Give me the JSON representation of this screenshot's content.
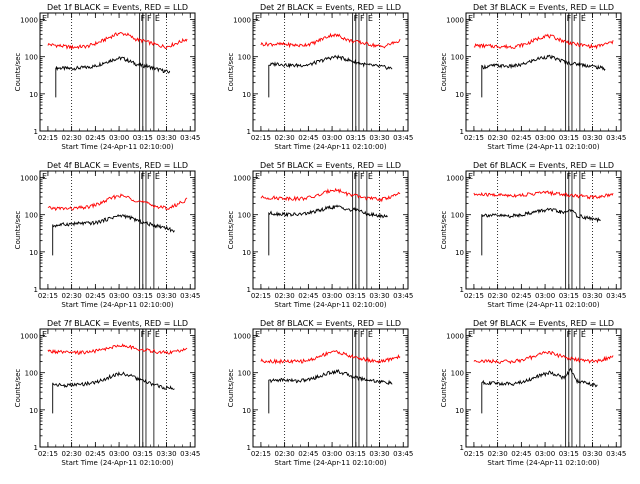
{
  "xticks": [
    "02:15",
    "02:30",
    "02:45",
    "03:00",
    "03:15",
    "03:30",
    "03:45"
  ],
  "yticks": [
    "1",
    "10",
    "100",
    "1000"
  ],
  "xlabel": "Start Time (24-Apr-11 02:10:00)",
  "ylabel": "Counts/sec",
  "colors": {
    "events": "#000000",
    "lld": "#ff0000",
    "dotted": "#000000",
    "frame": "#000000"
  },
  "chart_data": [
    {
      "type": "line",
      "title": "Det 1f BLACK = Events, RED = LLD",
      "markers": [
        "F",
        "F",
        "E"
      ],
      "series": [
        {
          "name": "Events",
          "color": "#000000",
          "points": [
            [
              "02:20",
              50
            ],
            [
              "02:30",
              48
            ],
            [
              "02:40",
              52
            ],
            [
              "02:45",
              56
            ],
            [
              "02:50",
              68
            ],
            [
              "02:55",
              80
            ],
            [
              "02:58",
              88
            ],
            [
              "03:02",
              92
            ],
            [
              "03:07",
              75
            ],
            [
              "03:12",
              60
            ],
            [
              "03:18",
              55
            ],
            [
              "03:25",
              45
            ],
            [
              "03:32",
              38
            ]
          ]
        },
        {
          "name": "LLD",
          "color": "#ff0000",
          "points": [
            [
              "02:15",
              215
            ],
            [
              "02:30",
              180
            ],
            [
              "02:40",
              190
            ],
            [
              "02:48",
              250
            ],
            [
              "02:55",
              350
            ],
            [
              "03:00",
              430
            ],
            [
              "03:05",
              400
            ],
            [
              "03:10",
              300
            ],
            [
              "03:18",
              250
            ],
            [
              "03:25",
              200
            ],
            [
              "03:30",
              185
            ],
            [
              "03:35",
              220
            ],
            [
              "03:43",
              300
            ]
          ]
        }
      ]
    },
    {
      "type": "line",
      "title": "Det 2f BLACK = Events, RED = LLD",
      "markers": [
        "F",
        "F",
        "E"
      ],
      "series": [
        {
          "name": "Events",
          "color": "#000000",
          "points": [
            [
              "02:20",
              60
            ],
            [
              "02:25",
              65
            ],
            [
              "02:35",
              58
            ],
            [
              "02:45",
              60
            ],
            [
              "02:52",
              75
            ],
            [
              "02:58",
              92
            ],
            [
              "03:03",
              100
            ],
            [
              "03:08",
              88
            ],
            [
              "03:15",
              70
            ],
            [
              "03:22",
              60
            ],
            [
              "03:30",
              55
            ],
            [
              "03:38",
              48
            ]
          ]
        },
        {
          "name": "LLD",
          "color": "#ff0000",
          "points": [
            [
              "02:15",
              220
            ],
            [
              "02:30",
              215
            ],
            [
              "02:40",
              200
            ],
            [
              "02:48",
              230
            ],
            [
              "02:55",
              320
            ],
            [
              "03:00",
              390
            ],
            [
              "03:05",
              360
            ],
            [
              "03:10",
              280
            ],
            [
              "03:18",
              240
            ],
            [
              "03:25",
              210
            ],
            [
              "03:32",
              185
            ],
            [
              "03:43",
              270
            ]
          ]
        }
      ]
    },
    {
      "type": "line",
      "title": "Det 3f BLACK = Events, RED = LLD",
      "markers": [
        "F",
        "F",
        "E"
      ],
      "series": [
        {
          "name": "Events",
          "color": "#000000",
          "points": [
            [
              "02:20",
              52
            ],
            [
              "02:28",
              58
            ],
            [
              "02:38",
              55
            ],
            [
              "02:45",
              60
            ],
            [
              "02:52",
              78
            ],
            [
              "02:58",
              95
            ],
            [
              "03:03",
              100
            ],
            [
              "03:08",
              85
            ],
            [
              "03:15",
              68
            ],
            [
              "03:22",
              62
            ],
            [
              "03:30",
              55
            ],
            [
              "03:38",
              48
            ]
          ]
        },
        {
          "name": "LLD",
          "color": "#ff0000",
          "points": [
            [
              "02:15",
              200
            ],
            [
              "02:30",
              190
            ],
            [
              "02:40",
              185
            ],
            [
              "02:48",
              220
            ],
            [
              "02:55",
              300
            ],
            [
              "03:00",
              370
            ],
            [
              "03:05",
              340
            ],
            [
              "03:10",
              280
            ],
            [
              "03:18",
              220
            ],
            [
              "03:25",
              200
            ],
            [
              "03:32",
              185
            ],
            [
              "03:43",
              250
            ]
          ]
        }
      ]
    },
    {
      "type": "line",
      "title": "Det 4f BLACK = Events, RED = LLD",
      "markers": [
        "F",
        "F",
        "E"
      ],
      "series": [
        {
          "name": "Events",
          "color": "#000000",
          "points": [
            [
              "02:18",
              50
            ],
            [
              "02:25",
              55
            ],
            [
              "02:35",
              58
            ],
            [
              "02:45",
              60
            ],
            [
              "02:52",
              75
            ],
            [
              "02:58",
              90
            ],
            [
              "03:03",
              95
            ],
            [
              "03:08",
              80
            ],
            [
              "03:15",
              62
            ],
            [
              "03:22",
              52
            ],
            [
              "03:30",
              45
            ],
            [
              "03:35",
              35
            ]
          ]
        },
        {
          "name": "LLD",
          "color": "#ff0000",
          "points": [
            [
              "02:15",
              150
            ],
            [
              "02:30",
              145
            ],
            [
              "02:40",
              160
            ],
            [
              "02:48",
              200
            ],
            [
              "02:55",
              280
            ],
            [
              "03:00",
              330
            ],
            [
              "03:05",
              300
            ],
            [
              "03:10",
              250
            ],
            [
              "03:18",
              200
            ],
            [
              "03:25",
              160
            ],
            [
              "03:32",
              150
            ],
            [
              "03:43",
              260
            ]
          ]
        }
      ]
    },
    {
      "type": "line",
      "title": "Det 5f BLACK = Events, RED = LLD",
      "markers": [
        "F",
        "F",
        "E"
      ],
      "series": [
        {
          "name": "Events",
          "color": "#000000",
          "points": [
            [
              "02:20",
              110
            ],
            [
              "02:28",
              105
            ],
            [
              "02:38",
              100
            ],
            [
              "02:45",
              110
            ],
            [
              "02:52",
              130
            ],
            [
              "02:58",
              155
            ],
            [
              "03:03",
              165
            ],
            [
              "03:08",
              150
            ],
            [
              "03:12",
              130
            ],
            [
              "03:16",
              140
            ],
            [
              "03:20",
              110
            ],
            [
              "03:28",
              95
            ],
            [
              "03:35",
              90
            ]
          ]
        },
        {
          "name": "LLD",
          "color": "#ff0000",
          "points": [
            [
              "02:15",
              290
            ],
            [
              "02:30",
              280
            ],
            [
              "02:40",
              270
            ],
            [
              "02:48",
              300
            ],
            [
              "02:55",
              380
            ],
            [
              "03:00",
              480
            ],
            [
              "03:05",
              440
            ],
            [
              "03:10",
              360
            ],
            [
              "03:18",
              300
            ],
            [
              "03:25",
              270
            ],
            [
              "03:32",
              260
            ],
            [
              "03:43",
              370
            ]
          ]
        }
      ]
    },
    {
      "type": "line",
      "title": "Det 6f BLACK = Events, RED = LLD",
      "markers": [
        "F",
        "F",
        "E"
      ],
      "series": [
        {
          "name": "Events",
          "color": "#000000",
          "points": [
            [
              "02:20",
              100
            ],
            [
              "02:28",
              95
            ],
            [
              "02:38",
              92
            ],
            [
              "02:45",
              100
            ],
            [
              "02:52",
              115
            ],
            [
              "02:58",
              130
            ],
            [
              "03:03",
              135
            ],
            [
              "03:08",
              125
            ],
            [
              "03:12",
              110
            ],
            [
              "03:16",
              140
            ],
            [
              "03:20",
              95
            ],
            [
              "03:28",
              80
            ],
            [
              "03:35",
              70
            ]
          ]
        },
        {
          "name": "LLD",
          "color": "#ff0000",
          "points": [
            [
              "02:15",
              350
            ],
            [
              "02:30",
              340
            ],
            [
              "02:40",
              330
            ],
            [
              "02:48",
              345
            ],
            [
              "02:55",
              380
            ],
            [
              "03:00",
              400
            ],
            [
              "03:05",
              380
            ],
            [
              "03:10",
              360
            ],
            [
              "03:18",
              330
            ],
            [
              "03:25",
              310
            ],
            [
              "03:32",
              300
            ],
            [
              "03:43",
              360
            ]
          ]
        }
      ]
    },
    {
      "type": "line",
      "title": "Det 7f BLACK = Events, RED = LLD",
      "markers": [
        "F",
        "F",
        "E"
      ],
      "series": [
        {
          "name": "Events",
          "color": "#000000",
          "points": [
            [
              "02:18",
              50
            ],
            [
              "02:25",
              45
            ],
            [
              "02:35",
              48
            ],
            [
              "02:45",
              55
            ],
            [
              "02:52",
              70
            ],
            [
              "02:58",
              90
            ],
            [
              "03:03",
              95
            ],
            [
              "03:08",
              80
            ],
            [
              "03:15",
              60
            ],
            [
              "03:22",
              48
            ],
            [
              "03:28",
              40
            ],
            [
              "03:35",
              38
            ]
          ]
        },
        {
          "name": "LLD",
          "color": "#ff0000",
          "points": [
            [
              "02:15",
              380
            ],
            [
              "02:30",
              340
            ],
            [
              "02:40",
              360
            ],
            [
              "02:48",
              400
            ],
            [
              "02:55",
              480
            ],
            [
              "03:00",
              550
            ],
            [
              "03:05",
              520
            ],
            [
              "03:10",
              450
            ],
            [
              "03:18",
              400
            ],
            [
              "03:25",
              360
            ],
            [
              "03:32",
              350
            ],
            [
              "03:43",
              420
            ]
          ]
        }
      ]
    },
    {
      "type": "line",
      "title": "Det 8f BLACK = Events, RED = LLD",
      "markers": [
        "F",
        "F",
        "E"
      ],
      "series": [
        {
          "name": "Events",
          "color": "#000000",
          "points": [
            [
              "02:20",
              60
            ],
            [
              "02:28",
              65
            ],
            [
              "02:38",
              60
            ],
            [
              "02:45",
              65
            ],
            [
              "02:52",
              80
            ],
            [
              "02:58",
              100
            ],
            [
              "03:03",
              110
            ],
            [
              "03:08",
              95
            ],
            [
              "03:15",
              75
            ],
            [
              "03:22",
              65
            ],
            [
              "03:30",
              58
            ],
            [
              "03:38",
              52
            ]
          ]
        },
        {
          "name": "LLD",
          "color": "#ff0000",
          "points": [
            [
              "02:15",
              210
            ],
            [
              "02:30",
              200
            ],
            [
              "02:40",
              200
            ],
            [
              "02:48",
              230
            ],
            [
              "02:55",
              310
            ],
            [
              "03:00",
              380
            ],
            [
              "03:05",
              350
            ],
            [
              "03:10",
              290
            ],
            [
              "03:18",
              240
            ],
            [
              "03:25",
              210
            ],
            [
              "03:32",
              200
            ],
            [
              "03:43",
              280
            ]
          ]
        }
      ]
    },
    {
      "type": "line",
      "title": "Det 9f BLACK = Events, RED = LLD",
      "markers": [
        "F",
        "F",
        "E"
      ],
      "series": [
        {
          "name": "Events",
          "color": "#000000",
          "points": [
            [
              "02:20",
              55
            ],
            [
              "02:28",
              52
            ],
            [
              "02:38",
              50
            ],
            [
              "02:45",
              55
            ],
            [
              "02:52",
              70
            ],
            [
              "02:58",
              88
            ],
            [
              "03:03",
              100
            ],
            [
              "03:08",
              88
            ],
            [
              "03:12",
              70
            ],
            [
              "03:16",
              120
            ],
            [
              "03:20",
              60
            ],
            [
              "03:28",
              50
            ],
            [
              "03:33",
              45
            ]
          ]
        },
        {
          "name": "LLD",
          "color": "#ff0000",
          "points": [
            [
              "02:15",
              210
            ],
            [
              "02:30",
              200
            ],
            [
              "02:40",
              200
            ],
            [
              "02:48",
              230
            ],
            [
              "02:55",
              300
            ],
            [
              "03:00",
              360
            ],
            [
              "03:05",
              330
            ],
            [
              "03:10",
              280
            ],
            [
              "03:18",
              230
            ],
            [
              "03:25",
              210
            ],
            [
              "03:32",
              200
            ],
            [
              "03:43",
              270
            ]
          ]
        }
      ]
    }
  ]
}
